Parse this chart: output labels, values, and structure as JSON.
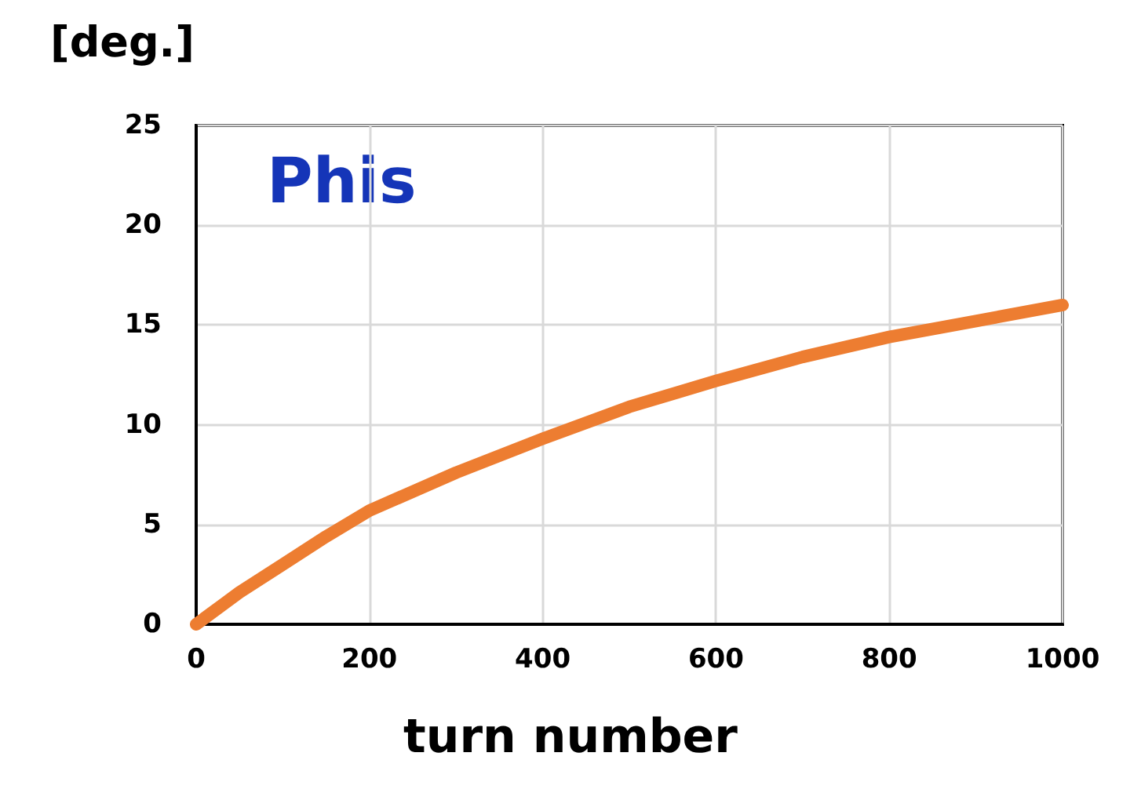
{
  "chart_data": {
    "type": "line",
    "ylabel": "[deg.]",
    "xlabel": "turn number",
    "annotations": [
      "Phis"
    ],
    "x": [
      0,
      50,
      100,
      150,
      200,
      300,
      400,
      500,
      600,
      700,
      800,
      900,
      1000
    ],
    "series": [
      {
        "color": "#ed7d31",
        "values": [
          0,
          1.6,
          3.0,
          4.4,
          5.7,
          7.6,
          9.3,
          10.9,
          12.2,
          13.4,
          14.4,
          15.2,
          16.0
        ]
      }
    ],
    "xlim": [
      0,
      1000
    ],
    "xticks": [
      0,
      200,
      400,
      600,
      800,
      1000
    ],
    "ylim": [
      0,
      25
    ],
    "yticks": [
      0,
      5,
      10,
      15,
      20,
      25
    ],
    "grid": true,
    "marker": "none",
    "line_style": "solid"
  }
}
